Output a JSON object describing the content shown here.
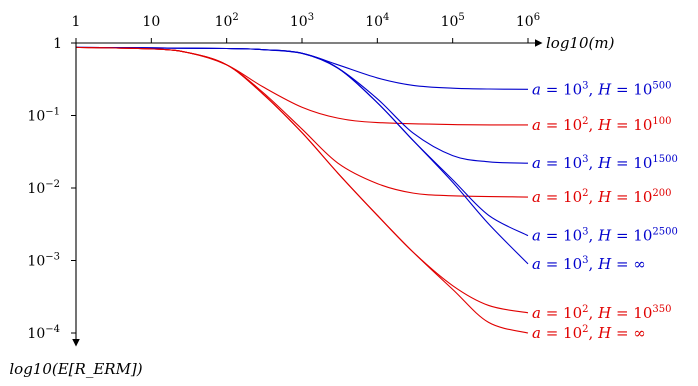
{
  "chart_data": {
    "type": "line",
    "title": "",
    "xlabel": "log10(m)",
    "ylabel": "log10(E[R_ERM])",
    "x_scale": "log",
    "y_scale": "log",
    "xlim": [
      1,
      1000000
    ],
    "ylim": [
      0.0001,
      1
    ],
    "x_ticks": [
      {
        "value": 1,
        "base": "1",
        "exp": ""
      },
      {
        "value": 10,
        "base": "10",
        "exp": ""
      },
      {
        "value": 100,
        "base": "10",
        "exp": "2"
      },
      {
        "value": 1000,
        "base": "10",
        "exp": "3"
      },
      {
        "value": 10000,
        "base": "10",
        "exp": "4"
      },
      {
        "value": 100000,
        "base": "10",
        "exp": "5"
      },
      {
        "value": 1000000,
        "base": "10",
        "exp": "6"
      }
    ],
    "y_ticks": [
      {
        "value": 1,
        "base": "1",
        "exp": ""
      },
      {
        "value": 0.1,
        "base": "10",
        "exp": "−1"
      },
      {
        "value": 0.01,
        "base": "10",
        "exp": "−2"
      },
      {
        "value": 0.001,
        "base": "10",
        "exp": "−3"
      },
      {
        "value": 0.0001,
        "base": "10",
        "exp": "−4"
      }
    ],
    "grid": false,
    "legend": "inline labels at right end of each curve",
    "colors": {
      "a100": "#e00000",
      "a1000": "#0000cc",
      "axis": "#000000"
    },
    "series": [
      {
        "name": "a = 10^3, H = 10^500",
        "a": "3",
        "H": "500",
        "color": "#0000cc",
        "x": [
          1,
          100,
          300,
          1000,
          3000,
          10000,
          30000,
          100000,
          300000,
          1000000
        ],
        "y": [
          0.87,
          0.84,
          0.81,
          0.72,
          0.5,
          0.33,
          0.26,
          0.238,
          0.232,
          0.23
        ]
      },
      {
        "name": "a = 10^2, H = 10^100",
        "a": "2",
        "H": "100",
        "color": "#e00000",
        "x": [
          1,
          10,
          30,
          100,
          300,
          1000,
          3000,
          10000,
          100000,
          1000000
        ],
        "y": [
          0.87,
          0.83,
          0.74,
          0.5,
          0.25,
          0.13,
          0.092,
          0.08,
          0.075,
          0.074
        ]
      },
      {
        "name": "a = 10^3, H = 10^1500",
        "a": "3",
        "H": "1500",
        "color": "#0000cc",
        "x": [
          1,
          100,
          300,
          1000,
          3000,
          10000,
          30000,
          100000,
          300000,
          1000000
        ],
        "y": [
          0.87,
          0.84,
          0.81,
          0.72,
          0.45,
          0.17,
          0.057,
          0.028,
          0.023,
          0.022
        ]
      },
      {
        "name": "a = 10^2, H = 10^200",
        "a": "2",
        "H": "200",
        "color": "#e00000",
        "x": [
          1,
          10,
          30,
          100,
          300,
          1000,
          3000,
          10000,
          30000,
          100000,
          1000000
        ],
        "y": [
          0.87,
          0.83,
          0.74,
          0.5,
          0.21,
          0.065,
          0.022,
          0.0115,
          0.0085,
          0.0078,
          0.0075
        ]
      },
      {
        "name": "a = 10^3, H = 10^2500",
        "a": "3",
        "H": "2500",
        "color": "#0000cc",
        "x": [
          1,
          100,
          300,
          1000,
          3000,
          10000,
          30000,
          100000,
          300000,
          1000000
        ],
        "y": [
          0.87,
          0.84,
          0.81,
          0.72,
          0.45,
          0.15,
          0.045,
          0.013,
          0.0042,
          0.0022
        ]
      },
      {
        "name": "a = 10^3, H = ∞",
        "a": "3",
        "H": "∞",
        "color": "#0000cc",
        "x": [
          1,
          100,
          300,
          1000,
          3000,
          10000,
          30000,
          100000,
          300000,
          1000000
        ],
        "y": [
          0.87,
          0.84,
          0.81,
          0.72,
          0.45,
          0.15,
          0.045,
          0.012,
          0.0032,
          0.0009
        ]
      },
      {
        "name": "a = 10^2, H = 10^350",
        "a": "2",
        "H": "350",
        "color": "#e00000",
        "x": [
          1,
          10,
          30,
          100,
          300,
          1000,
          3000,
          10000,
          30000,
          100000,
          300000,
          1000000
        ],
        "y": [
          0.87,
          0.83,
          0.74,
          0.5,
          0.2,
          0.058,
          0.016,
          0.0042,
          0.0013,
          0.00045,
          0.00024,
          0.00019
        ]
      },
      {
        "name": "a = 10^2, H = ∞",
        "a": "2",
        "H": "∞",
        "color": "#e00000",
        "x": [
          1,
          10,
          30,
          100,
          300,
          1000,
          3000,
          10000,
          30000,
          100000,
          300000,
          1000000
        ],
        "y": [
          0.87,
          0.83,
          0.74,
          0.5,
          0.2,
          0.058,
          0.016,
          0.0042,
          0.0013,
          0.0004,
          0.00014,
          0.0001
        ]
      }
    ]
  }
}
